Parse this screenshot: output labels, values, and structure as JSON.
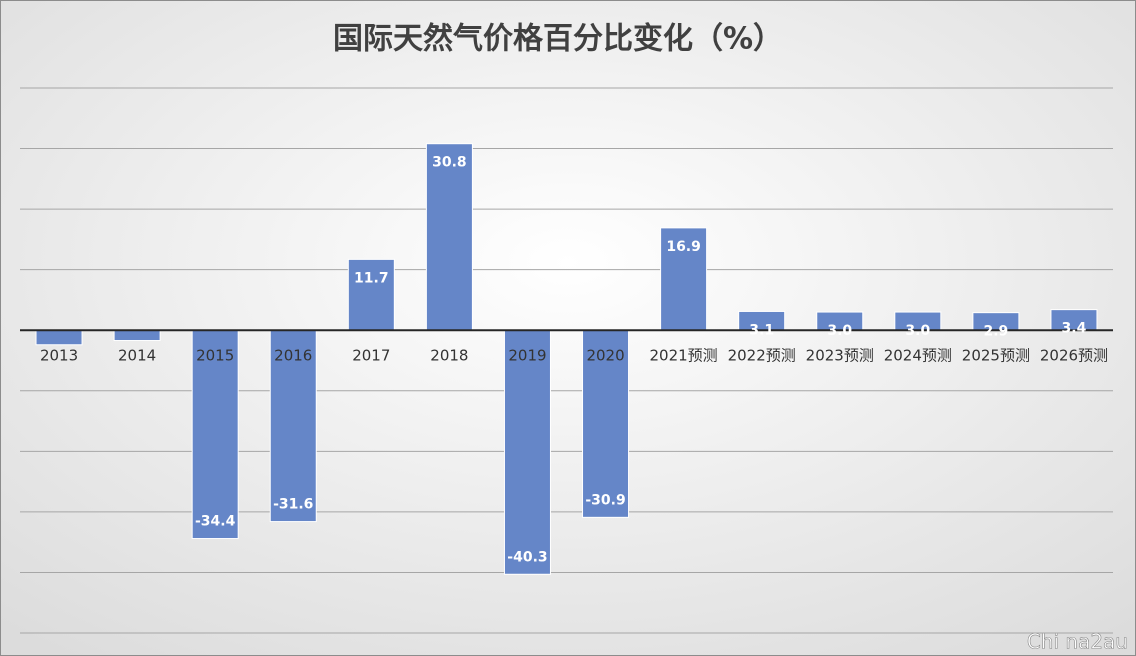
{
  "chart_data": {
    "type": "bar",
    "title": "国际天然气价格百分比变化（%）",
    "categories": [
      "2013",
      "2014",
      "2015",
      "2016",
      "2017",
      "2018",
      "2019",
      "2020",
      "2021预测",
      "2022预测",
      "2023预测",
      "2024预测",
      "2025预测",
      "2026预测"
    ],
    "values": [
      -2.4,
      -1.7,
      -34.4,
      -31.6,
      11.7,
      30.8,
      -40.3,
      -30.9,
      16.9,
      3.1,
      3.0,
      3.0,
      2.9,
      3.4
    ],
    "value_labels": [
      null,
      null,
      "-34.4",
      "-31.6",
      "11.7",
      "30.8",
      "-40.3",
      "-30.9",
      "16.9",
      "3.1",
      "3.0",
      "3.0",
      "2.9",
      "3.4"
    ],
    "color": "#6586c8",
    "ylim": [
      -50,
      40
    ],
    "yticks": [
      -50,
      -40,
      -30,
      -20,
      -10,
      0,
      10,
      20,
      30,
      40
    ],
    "grid": true,
    "watermark": "Chi na2au"
  }
}
